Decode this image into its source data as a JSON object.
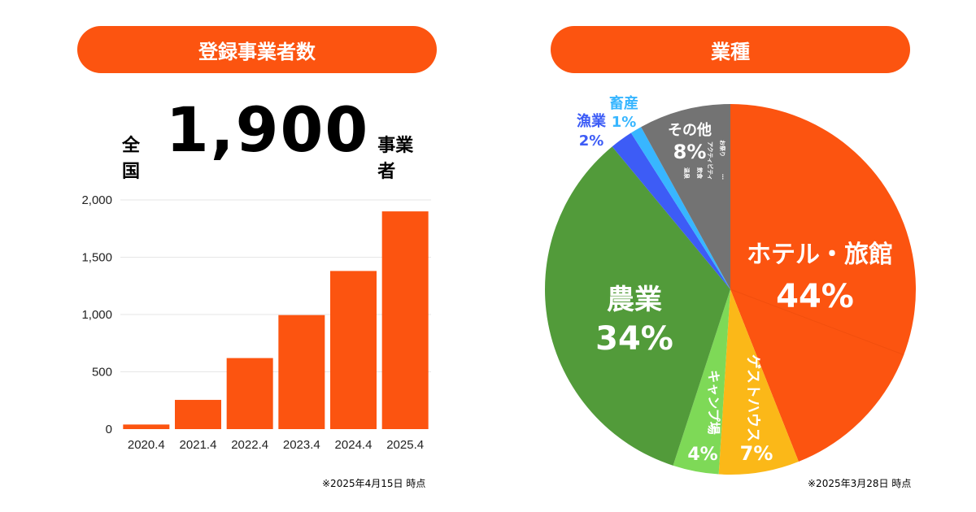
{
  "left_panel": {
    "title": "登録事業者数",
    "total_prefix": "全国",
    "total_value": "1,900",
    "total_suffix": "事業者",
    "note": "※2025年4月15日 時点"
  },
  "right_panel": {
    "title": "業種",
    "note": "※2025年3月28日 時点",
    "other_small_labels": [
      "お祭り",
      "アクティビティ",
      "飲食",
      "温泉",
      "…"
    ]
  },
  "colors": {
    "accent": "#FC5410",
    "hotel": "#FC5410",
    "guesthouse": "#FBB818",
    "camp": "#7ED957",
    "farm": "#529B3A",
    "fish": "#3D5CF6",
    "livestock": "#38B6FF",
    "other": "#737373"
  },
  "chart_data": [
    {
      "type": "bar",
      "categories": [
        "2020.4",
        "2021.4",
        "2022.4",
        "2023.4",
        "2024.4",
        "2025.4"
      ],
      "values": [
        40,
        255,
        620,
        995,
        1380,
        1900
      ],
      "yticks": [
        "0",
        "500",
        "1,000",
        "1,500",
        "2,000"
      ],
      "ylim": [
        0,
        2000
      ],
      "grid": true,
      "color": "#FC5410"
    },
    {
      "type": "pie",
      "slices": [
        {
          "label": "ホテル・旅館",
          "value": 44,
          "display": "44%",
          "color": "#FC5410"
        },
        {
          "label": "ゲストハウス",
          "value": 7,
          "display": "7%",
          "color": "#FBB818"
        },
        {
          "label": "キャンプ場",
          "value": 4,
          "display": "4%",
          "color": "#7ED957"
        },
        {
          "label": "農業",
          "value": 34,
          "display": "34%",
          "color": "#529B3A"
        },
        {
          "label": "漁業",
          "value": 2,
          "display": "2%",
          "color": "#3D5CF6"
        },
        {
          "label": "畜産",
          "value": 1,
          "display": "1%",
          "color": "#38B6FF"
        },
        {
          "label": "その他",
          "value": 8,
          "display": "8%",
          "color": "#737373"
        }
      ]
    }
  ]
}
